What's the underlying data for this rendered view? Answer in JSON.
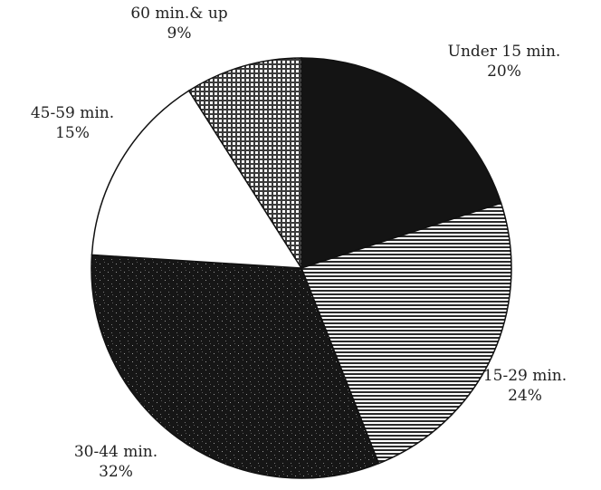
{
  "chart_data": {
    "type": "pie",
    "title": "",
    "start_angle_deg": 0,
    "direction": "clockwise",
    "slices": [
      {
        "label": "Under 15 min.",
        "value": 20,
        "percent_label": "20%",
        "fill": "solid",
        "color": "#141414"
      },
      {
        "label": "15-29 min.",
        "value": 24,
        "percent_label": "24%",
        "fill": "horizontal-lines",
        "color": "#5a5a5a"
      },
      {
        "label": "30-44 min.",
        "value": 32,
        "percent_label": "32%",
        "fill": "dark-speckle",
        "color": "#1c1c1c"
      },
      {
        "label": "45-59 min.",
        "value": 15,
        "percent_label": "15%",
        "fill": "white",
        "color": "#ffffff"
      },
      {
        "label": "60 min.& up",
        "value": 9,
        "percent_label": "9%",
        "fill": "crosshatch",
        "color": "#7a7a7a"
      }
    ]
  }
}
